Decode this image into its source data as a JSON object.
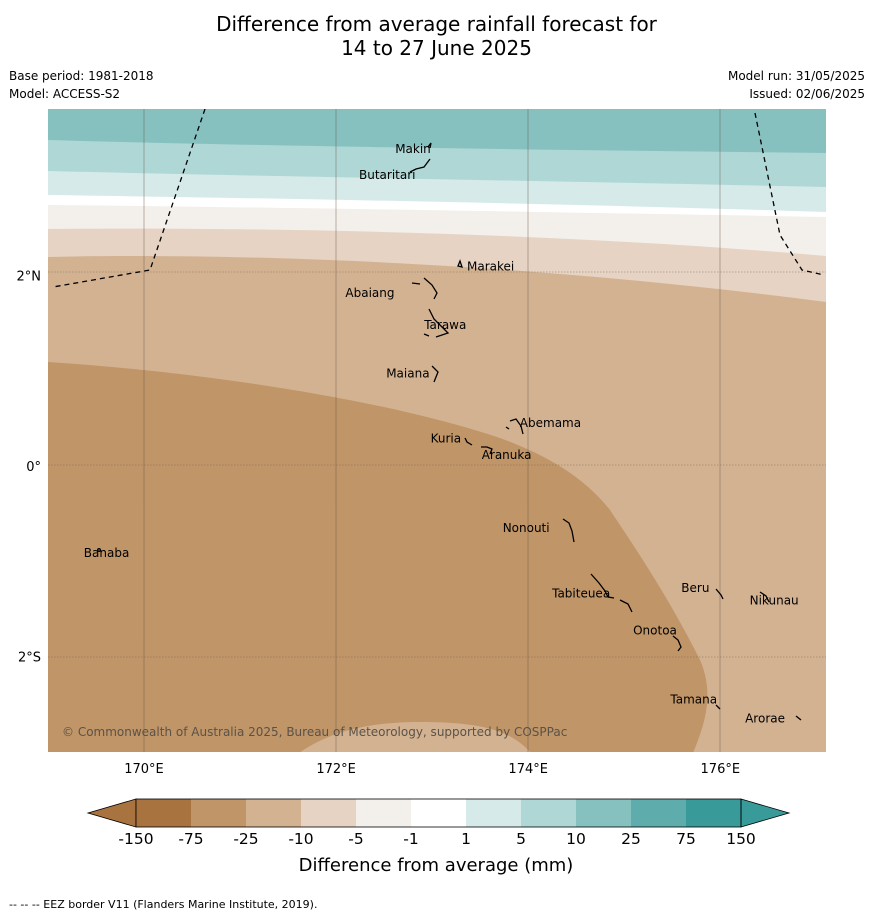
{
  "title": {
    "line1": "Difference from average rainfall forecast for",
    "line2": "14 to 27 June 2025"
  },
  "meta": {
    "base_period": "Base period: 1981-2018",
    "model": "Model: ACCESS-S2",
    "model_run": "Model run: 31/05/2025",
    "issued": "Issued: 02/06/2025"
  },
  "map": {
    "lon_range": [
      169.0,
      177.1
    ],
    "lat_range": [
      -3.0,
      3.75
    ],
    "lon_ticks": [
      {
        "value": 170,
        "label": "170°E"
      },
      {
        "value": 172,
        "label": "172°E"
      },
      {
        "value": 174,
        "label": "174°E"
      },
      {
        "value": 176,
        "label": "176°E"
      }
    ],
    "lat_ticks": [
      {
        "value": 2,
        "label": "2°N"
      },
      {
        "value": 0,
        "label": "0°"
      },
      {
        "value": -2,
        "label": "2°S"
      }
    ],
    "copyright": "© Commonwealth of Australia 2025, Bureau of Meteorology, supported by COSPPac",
    "islands": [
      {
        "name": "Makin",
        "lon": 172.99,
        "lat": 3.32
      },
      {
        "name": "Butaritari",
        "lon": 172.8,
        "lat": 3.1
      },
      {
        "name": "Marakei",
        "lon": 173.3,
        "lat": 2.0
      },
      {
        "name": "Abaiang",
        "lon": 172.95,
        "lat": 1.8
      },
      {
        "name": "Tarawa",
        "lon": 173.0,
        "lat": 1.45
      },
      {
        "name": "Maiana",
        "lon": 173.0,
        "lat": 0.95
      },
      {
        "name": "Abemama",
        "lon": 173.85,
        "lat": 0.4
      },
      {
        "name": "Kuria",
        "lon": 173.4,
        "lat": 0.22
      },
      {
        "name": "Aranuka",
        "lon": 173.62,
        "lat": 0.16
      },
      {
        "name": "Nonouti",
        "lon": 174.4,
        "lat": -0.65
      },
      {
        "name": "Banaba",
        "lon": 169.55,
        "lat": -0.88
      },
      {
        "name": "Tabiteuea",
        "lon": 174.8,
        "lat": -1.4
      },
      {
        "name": "Beru",
        "lon": 176.0,
        "lat": -1.33
      },
      {
        "name": "Nikunau",
        "lon": 176.45,
        "lat": -1.37
      },
      {
        "name": "Onotoa",
        "lon": 175.55,
        "lat": -1.8
      },
      {
        "name": "Tamana",
        "lon": 175.98,
        "lat": -2.5
      },
      {
        "name": "Arorae",
        "lon": 176.82,
        "lat": -2.65
      }
    ]
  },
  "legend": {
    "title": "Difference from average (mm)",
    "bins": [
      {
        "color": "#a8733f"
      },
      {
        "color": "#c09568"
      },
      {
        "color": "#d3b292"
      },
      {
        "color": "#e6d3c3"
      },
      {
        "color": "#f3efea"
      },
      {
        "color": "#ffffff"
      },
      {
        "color": "#d6eae9"
      },
      {
        "color": "#afd7d6"
      },
      {
        "color": "#86c1c0"
      },
      {
        "color": "#5eadac"
      },
      {
        "color": "#389b99"
      }
    ],
    "under_color": "#a8733f",
    "over_color": "#389b99",
    "tick_labels": [
      "-150",
      "-75",
      "-25",
      "-10",
      "-5",
      "-1",
      "1",
      "5",
      "10",
      "25",
      "75",
      "150"
    ]
  },
  "footer": "--  --  -- EEZ border V11 (Flanders Marine Institute, 2019)."
}
